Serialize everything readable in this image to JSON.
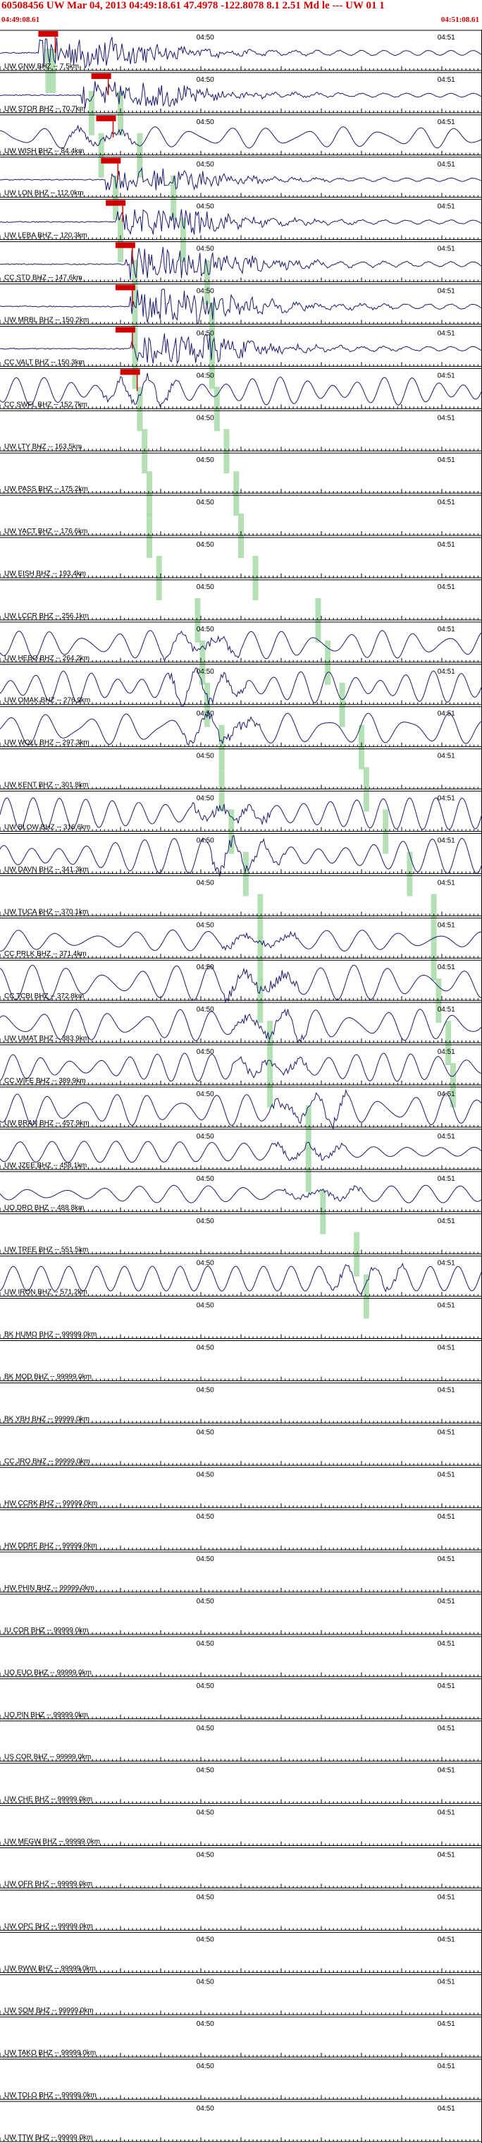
{
  "header": {
    "title": "60508456 UW Mar 04, 2013 04:49:18.61   47.4978 -122.8078  8.1 2.51 Md le --- UW 01   1",
    "start_time": "04:49:08.61",
    "end_time": "04:51:08.61"
  },
  "chart_data": {
    "type": "seismogram-record-section",
    "time_axis": {
      "start": "04:49:08.61",
      "end": "04:51:08.61",
      "minute_labels": [
        "04:50",
        "04:51"
      ]
    },
    "colors": {
      "trace": "#1a1a6e",
      "pick": "#d00000",
      "arrival_band": "#a8dba8",
      "axis": "#000000"
    },
    "traces": [
      {
        "label": "UW GNW BHZ -- 7.5km",
        "p": 0.1,
        "s": 0.11,
        "pick": 0.1,
        "amp": 0.9,
        "style": "quake",
        "onset": 0.08
      },
      {
        "label": "UW STOR BHZ -- 70.7km",
        "p": 0.19,
        "s": 0.25,
        "pick": 0.21,
        "amp": 0.7,
        "style": "quake",
        "onset": 0.17
      },
      {
        "label": "UW WISH BHZ -- 84.4km",
        "p": 0.21,
        "s": 0.29,
        "pick": 0.22,
        "amp": 0.6,
        "style": "wavy",
        "onset": 0.2
      },
      {
        "label": "UW LON BHZ -- 112.0km",
        "p": 0.24,
        "s": 0.36,
        "pick": 0.23,
        "amp": 0.6,
        "style": "quake",
        "onset": 0.22
      },
      {
        "label": "UW LEBA BHZ -- 120.3km",
        "p": 0.25,
        "s": 0.38,
        "pick": 0.24,
        "amp": 0.7,
        "style": "quake",
        "onset": 0.24
      },
      {
        "label": "CC STD BHZ -- 147.6km",
        "p": 0.28,
        "s": 0.43,
        "pick": 0.26,
        "amp": 0.9,
        "style": "quake",
        "onset": 0.26
      },
      {
        "label": "UW MRBL BHZ -- 150.2km",
        "p": 0.28,
        "s": 0.44,
        "pick": 0.26,
        "amp": 0.9,
        "style": "quake",
        "onset": 0.27
      },
      {
        "label": "CC VALT BHZ -- 150.3km",
        "p": 0.28,
        "s": 0.44,
        "pick": 0.26,
        "amp": 0.8,
        "style": "quake",
        "onset": 0.27
      },
      {
        "label": "CC SWFL BHZ -- 152.7km",
        "p": 0.29,
        "s": 0.45,
        "pick": 0.27,
        "amp": 0.8,
        "style": "wavy",
        "onset": 0.28
      },
      {
        "label": "UW LTY BHZ -- 163.5km",
        "p": 0.3,
        "s": 0.47,
        "pick": null,
        "amp": 0.0,
        "style": "flat",
        "onset": 0.0
      },
      {
        "label": "UW PASS BHZ -- 175.2km",
        "p": 0.31,
        "s": 0.49,
        "pick": null,
        "amp": 0.0,
        "style": "flat",
        "onset": 0.0
      },
      {
        "label": "UW YACT BHZ -- 176.6km",
        "p": 0.31,
        "s": 0.5,
        "pick": null,
        "amp": 0.0,
        "style": "flat",
        "onset": 0.0
      },
      {
        "label": "UW EISH BHZ -- 193.4km",
        "p": 0.33,
        "s": 0.53,
        "pick": null,
        "amp": 0.0,
        "style": "flat",
        "onset": 0.0
      },
      {
        "label": "UW LCCR BHZ -- 256.1km",
        "p": 0.41,
        "s": 0.66,
        "pick": null,
        "amp": 0.0,
        "style": "flat",
        "onset": 0.0
      },
      {
        "label": "UW HEBO BHZ -- 264.2km",
        "p": 0.42,
        "s": 0.68,
        "pick": null,
        "amp": 0.8,
        "style": "wavy",
        "onset": 0.0
      },
      {
        "label": "UW OMAK BHZ -- 276.9km",
        "p": 0.43,
        "s": 0.71,
        "pick": null,
        "amp": 0.9,
        "style": "wavy",
        "onset": 0.0
      },
      {
        "label": "UW WOLL BHZ -- 297.3km",
        "p": 0.46,
        "s": 0.75,
        "pick": null,
        "amp": 0.9,
        "style": "wavy",
        "onset": 0.0
      },
      {
        "label": "UW KENT BHZ -- 301.8km",
        "p": 0.46,
        "s": 0.76,
        "pick": null,
        "amp": 0.0,
        "style": "flat",
        "onset": 0.0
      },
      {
        "label": "UW BLOW BHZ -- 316.6km",
        "p": 0.48,
        "s": 0.8,
        "pick": null,
        "amp": 0.9,
        "style": "wavy",
        "onset": 0.0
      },
      {
        "label": "UW DAVN BHZ -- 341.3km",
        "p": 0.51,
        "s": 0.85,
        "pick": null,
        "amp": 1.0,
        "style": "wavy",
        "onset": 0.0
      },
      {
        "label": "UW TUCA BHZ -- 370.1km",
        "p": 0.54,
        "s": 0.9,
        "pick": null,
        "amp": 0.0,
        "style": "flat",
        "onset": 0.0
      },
      {
        "label": "CC PRLK BHZ -- 371.4km",
        "p": 0.54,
        "s": 0.9,
        "pick": null,
        "amp": 0.6,
        "style": "wavy",
        "onset": 0.0
      },
      {
        "label": "CC TCBI BHZ -- 372.8km",
        "p": 0.54,
        "s": 0.91,
        "pick": null,
        "amp": 1.0,
        "style": "wavy",
        "onset": 0.0
      },
      {
        "label": "UW UMAT BHZ -- 383.9km",
        "p": 0.56,
        "s": 0.93,
        "pick": null,
        "amp": 0.9,
        "style": "wavy",
        "onset": 0.0
      },
      {
        "label": "CC WIFE BHZ -- 389.9km",
        "p": 0.56,
        "s": 0.94,
        "pick": null,
        "amp": 0.8,
        "style": "wavy",
        "onset": 0.0
      },
      {
        "label": "UW BRAN BHZ -- 457.9km",
        "p": 0.64,
        "s": null,
        "pick": null,
        "amp": 0.9,
        "style": "wavy",
        "onset": 0.0
      },
      {
        "label": "UW JZEE BHZ -- 458.1km",
        "p": 0.64,
        "s": null,
        "pick": null,
        "amp": 0.6,
        "style": "wavy",
        "onset": 0.0
      },
      {
        "label": "UO DRO BHZ -- 488.8km",
        "p": 0.67,
        "s": null,
        "pick": null,
        "amp": 0.5,
        "style": "wavy",
        "onset": 0.0
      },
      {
        "label": "UW TREE BHZ -- 551.5km",
        "p": 0.74,
        "s": null,
        "pick": null,
        "amp": 0.0,
        "style": "flat",
        "onset": 0.0
      },
      {
        "label": "UW IRON BHZ -- 571.2km",
        "p": 0.76,
        "s": null,
        "pick": null,
        "amp": 0.7,
        "style": "wavy",
        "onset": 0.0
      },
      {
        "label": "BK HUMO BHZ -- 99999.0km",
        "p": null,
        "s": null,
        "pick": null,
        "amp": 0.0,
        "style": "flat",
        "onset": 0.0
      },
      {
        "label": "BK MOD BHZ -- 99999.0km",
        "p": null,
        "s": null,
        "pick": null,
        "amp": 0.0,
        "style": "flat",
        "onset": 0.0
      },
      {
        "label": "BK YBH BHZ -- 99999.0km",
        "p": null,
        "s": null,
        "pick": null,
        "amp": 0.0,
        "style": "flat",
        "onset": 0.0
      },
      {
        "label": "CC JRO BHZ -- 99999.0km",
        "p": null,
        "s": null,
        "pick": null,
        "amp": 0.0,
        "style": "flat",
        "onset": 0.0
      },
      {
        "label": "HW CCRK BHZ -- 99999.0km",
        "p": null,
        "s": null,
        "pick": null,
        "amp": 0.0,
        "style": "flat",
        "onset": 0.0
      },
      {
        "label": "HW DDRF BHZ -- 99999.0km",
        "p": null,
        "s": null,
        "pick": null,
        "amp": 0.0,
        "style": "flat",
        "onset": 0.0
      },
      {
        "label": "HW PHIN BHZ -- 99999.0km",
        "p": null,
        "s": null,
        "pick": null,
        "amp": 0.0,
        "style": "flat",
        "onset": 0.0
      },
      {
        "label": "IU COR BHZ -- 99999.0km",
        "p": null,
        "s": null,
        "pick": null,
        "amp": 0.0,
        "style": "flat",
        "onset": 0.0
      },
      {
        "label": "UO EUO BHZ -- 99999.0km",
        "p": null,
        "s": null,
        "pick": null,
        "amp": 0.0,
        "style": "flat",
        "onset": 0.0
      },
      {
        "label": "UO PIN BHZ -- 99999.0km",
        "p": null,
        "s": null,
        "pick": null,
        "amp": 0.0,
        "style": "flat",
        "onset": 0.0
      },
      {
        "label": "US COR BHZ -- 99999.0km",
        "p": null,
        "s": null,
        "pick": null,
        "amp": 0.0,
        "style": "flat",
        "onset": 0.0
      },
      {
        "label": "UW CHE BHZ -- 99999.0km",
        "p": null,
        "s": null,
        "pick": null,
        "amp": 0.0,
        "style": "flat",
        "onset": 0.0
      },
      {
        "label": "UW MEGW BHZ -- 99999.0km",
        "p": null,
        "s": null,
        "pick": null,
        "amp": 0.0,
        "style": "flat",
        "onset": 0.0
      },
      {
        "label": "UW OFR BHZ -- 99999.0km",
        "p": null,
        "s": null,
        "pick": null,
        "amp": 0.0,
        "style": "flat",
        "onset": 0.0
      },
      {
        "label": "UW OPC BHZ -- 99999.0km",
        "p": null,
        "s": null,
        "pick": null,
        "amp": 0.0,
        "style": "flat",
        "onset": 0.0
      },
      {
        "label": "UW RWW BHZ -- 99999.0km",
        "p": null,
        "s": null,
        "pick": null,
        "amp": 0.0,
        "style": "flat",
        "onset": 0.0
      },
      {
        "label": "UW SQM BHZ -- 99999.0km",
        "p": null,
        "s": null,
        "pick": null,
        "amp": 0.0,
        "style": "flat",
        "onset": 0.0
      },
      {
        "label": "UW TAKO BHZ -- 99999.0km",
        "p": null,
        "s": null,
        "pick": null,
        "amp": 0.0,
        "style": "flat",
        "onset": 0.0
      },
      {
        "label": "UW TOLO BHZ -- 99999.0km",
        "p": null,
        "s": null,
        "pick": null,
        "amp": 0.0,
        "style": "flat",
        "onset": 0.0
      },
      {
        "label": "UW TTW BHZ -- 99999.0km",
        "p": null,
        "s": null,
        "pick": null,
        "amp": 0.0,
        "style": "flat",
        "onset": 0.0
      }
    ]
  }
}
